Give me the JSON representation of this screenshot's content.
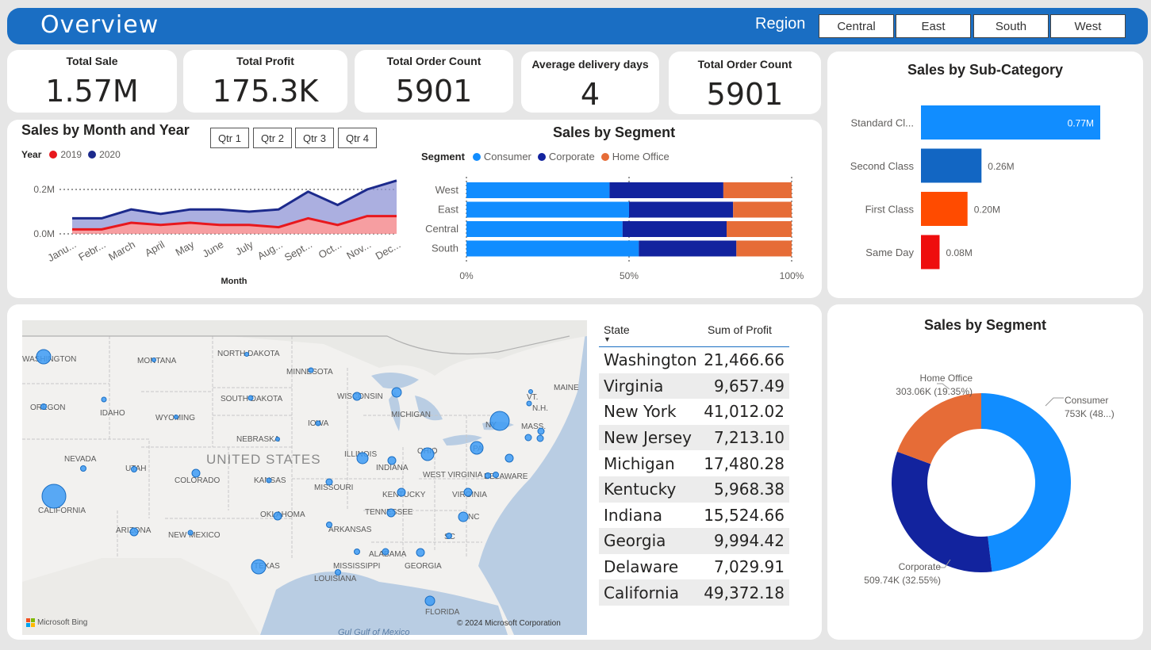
{
  "header": {
    "title": "Overview",
    "region_label": "Region",
    "regions": [
      "Central",
      "East",
      "South",
      "West"
    ]
  },
  "kpis": [
    {
      "title": "Total Sale",
      "value": "1.57M"
    },
    {
      "title": "Total Profit",
      "value": "175.3K"
    },
    {
      "title": "Total Order Count",
      "value": "5901"
    },
    {
      "title": "Average delivery days",
      "value": "4"
    },
    {
      "title": "Total Order Count",
      "value": "5901"
    }
  ],
  "colors": {
    "header": "#1a6ec3",
    "consumer": "#118dff",
    "corporate": "#12239e",
    "home_office": "#e66c37",
    "series_2019": "#e8181d",
    "series_2020": "#1c2a8c",
    "bar_second_class": "#1266c3",
    "bar_first_class": "#ff4b00",
    "bar_same_day": "#ee0d0d"
  },
  "sales_month": {
    "title": "Sales by Month and Year",
    "legend_label": "Year",
    "quarters": [
      "Qtr 1",
      "Qtr 2",
      "Qtr 3",
      "Qtr 4"
    ],
    "y_ticks": [
      "0.2M",
      "0.0M"
    ],
    "x_ticks": [
      "Janu...",
      "Febr...",
      "March",
      "April",
      "May",
      "June",
      "July",
      "Aug...",
      "Sept...",
      "Oct...",
      "Nov...",
      "Dec..."
    ]
  },
  "sales_segment_bar": {
    "title": "Sales by Segment",
    "legend_label": "Segment",
    "x_ticks": [
      "0%",
      "50%",
      "100%"
    ]
  },
  "sub_category": {
    "title": "Sales by Sub-Category",
    "labels": [
      "Standard Cl...",
      "Second Class",
      "First Class",
      "Same Day"
    ],
    "value_labels": [
      "0.77M",
      "0.26M",
      "0.20M",
      "0.08M"
    ]
  },
  "donut": {
    "title": "Sales by Segment",
    "labels": [
      {
        "name": "Home Office",
        "value": "303.06K (19.35%)"
      },
      {
        "name": "Consumer",
        "value": "753K (48...)"
      },
      {
        "name": "Corporate",
        "value": "509.74K (32.55%)"
      }
    ]
  },
  "map": {
    "country_label": "UNITED STATES",
    "state_labels": [
      "WASHINGTON",
      "MONTANA",
      "NORTH DAKOTA",
      "MINNESOTA",
      "OREGON",
      "IDAHO",
      "SOUTH DAKOTA",
      "WYOMING",
      "WISCONSIN",
      "MICHIGAN",
      "IOWA",
      "NEBRASKA",
      "NEVADA",
      "UTAH",
      "COLORADO",
      "KANSAS",
      "ILLINOIS",
      "INDIANA",
      "OHIO",
      "MISSOURI",
      "CALIFORNIA",
      "ARIZONA",
      "NEW MEXICO",
      "OKLAHOMA",
      "ARKANSAS",
      "TENNESSEE",
      "KENTUCKY",
      "WEST VIRGINIA",
      "VIRGINIA",
      "TEXAS",
      "MISSISSIPPI",
      "ALABAMA",
      "GEORGIA",
      "LOUISIANA",
      "FLORIDA",
      "NY",
      "PA",
      "NC",
      "SC",
      "MAINE",
      "VT.",
      "N.H.",
      "MASS.",
      "DELAWARE"
    ],
    "attribution_left": "Microsoft Bing",
    "attribution_right": "© 2024 Microsoft Corporation",
    "gulf_label": "Gul Gulf of Mexico"
  },
  "profit_table": {
    "col_state": "State",
    "col_profit": "Sum of Profit",
    "rows": [
      {
        "state": "Washington",
        "profit": "21,466.66"
      },
      {
        "state": "Virginia",
        "profit": "9,657.49"
      },
      {
        "state": "New York",
        "profit": "41,012.02"
      },
      {
        "state": "New Jersey",
        "profit": "7,213.10"
      },
      {
        "state": "Michigan",
        "profit": "17,480.28"
      },
      {
        "state": "Kentucky",
        "profit": "5,968.38"
      },
      {
        "state": "Indiana",
        "profit": "15,524.66"
      },
      {
        "state": "Georgia",
        "profit": "9,994.42"
      },
      {
        "state": "Delaware",
        "profit": "7,029.91"
      },
      {
        "state": "California",
        "profit": "49,372.18"
      }
    ]
  },
  "chart_data": [
    {
      "type": "area",
      "title": "Sales by Month and Year",
      "xlabel": "Month",
      "ylabel": "",
      "categories": [
        "Janu...",
        "Febr...",
        "March",
        "April",
        "May",
        "June",
        "July",
        "Aug...",
        "Sept...",
        "Oct...",
        "Nov...",
        "Dec..."
      ],
      "series": [
        {
          "name": "2019",
          "values": [
            0.02,
            0.02,
            0.05,
            0.04,
            0.05,
            0.04,
            0.04,
            0.03,
            0.07,
            0.04,
            0.08,
            0.08
          ]
        },
        {
          "name": "2020",
          "values": [
            0.07,
            0.07,
            0.11,
            0.09,
            0.11,
            0.11,
            0.1,
            0.11,
            0.19,
            0.13,
            0.2,
            0.24
          ]
        }
      ],
      "ylim": [
        0,
        0.25
      ],
      "grid": true
    },
    {
      "type": "bar",
      "title": "Sales by Segment",
      "stacked_percent": true,
      "categories": [
        "West",
        "East",
        "Central",
        "South"
      ],
      "series": [
        {
          "name": "Consumer",
          "values": [
            44,
            50,
            48,
            53
          ]
        },
        {
          "name": "Corporate",
          "values": [
            35,
            32,
            32,
            30
          ]
        },
        {
          "name": "Home Office",
          "values": [
            21,
            18,
            20,
            17
          ]
        }
      ],
      "xlim": [
        0,
        100
      ]
    },
    {
      "type": "bar",
      "title": "Sales by Sub-Category",
      "orientation": "horizontal",
      "categories": [
        "Standard Cl...",
        "Second Class",
        "First Class",
        "Same Day"
      ],
      "values": [
        0.77,
        0.26,
        0.2,
        0.08
      ]
    },
    {
      "type": "pie",
      "title": "Sales by Segment",
      "donut": true,
      "categories": [
        "Consumer",
        "Corporate",
        "Home Office"
      ],
      "values": [
        753,
        509.74,
        303.06
      ],
      "percent": [
        48.1,
        32.55,
        19.35
      ]
    },
    {
      "type": "table",
      "columns": [
        "State",
        "Sum of Profit"
      ],
      "rows": [
        [
          "Washington",
          21466.66
        ],
        [
          "Virginia",
          9657.49
        ],
        [
          "New York",
          41012.02
        ],
        [
          "New Jersey",
          7213.1
        ],
        [
          "Michigan",
          17480.28
        ],
        [
          "Kentucky",
          5968.38
        ],
        [
          "Indiana",
          15524.66
        ],
        [
          "Georgia",
          9994.42
        ],
        [
          "Delaware",
          7029.91
        ],
        [
          "California",
          49372.18
        ]
      ]
    }
  ]
}
